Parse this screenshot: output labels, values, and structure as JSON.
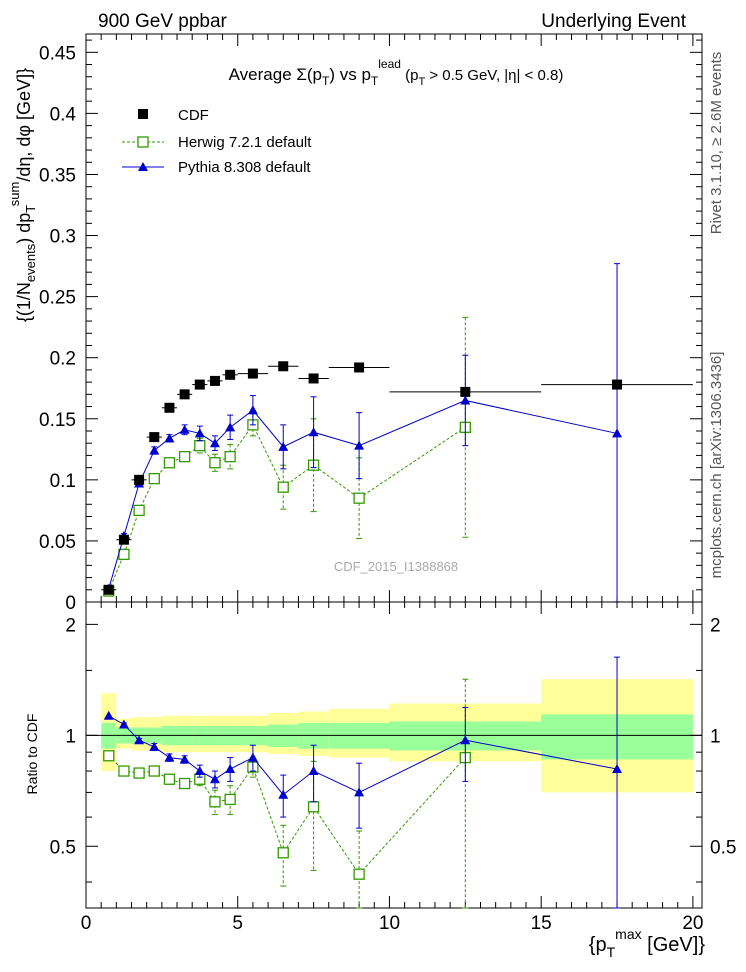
{
  "header": {
    "left": "900 GeV ppbar",
    "right": "Underlying Event"
  },
  "side_labels": {
    "rivet": "Rivet 3.1.10, ≥ 2.6M events",
    "mcplots": "mcplots.cern.ch [arXiv:1306.3436]"
  },
  "chart_data": [
    {
      "type": "scatter",
      "title": "Average Σ(p_T) vs p_T^lead (p_T > 0.5 GeV, |η| < 0.8)",
      "ylabel": "{(1/N_events) dp_T^sum/dη, dφ [GeV]}",
      "xlim": [
        0,
        20.3
      ],
      "ylim": [
        0,
        0.465
      ],
      "y_ticks": [
        "0",
        "0.05",
        "0.1",
        "0.15",
        "0.2",
        "0.25",
        "0.3",
        "0.35",
        "0.4",
        "0.45"
      ],
      "watermark": "CDF_2015_I1388868",
      "legend_position": "top-left",
      "series": [
        {
          "name": "CDF",
          "color": "#000000",
          "marker": "filled-square",
          "x": [
            0.75,
            1.25,
            1.75,
            2.25,
            2.75,
            3.25,
            3.75,
            4.25,
            4.75,
            5.5,
            6.5,
            7.5,
            9.0,
            12.5,
            17.5
          ],
          "y": [
            0.01,
            0.051,
            0.1,
            0.135,
            0.159,
            0.17,
            0.178,
            0.181,
            0.186,
            0.187,
            0.193,
            0.183,
            0.192,
            0.172,
            0.178
          ],
          "xerr": [
            0.25,
            0.25,
            0.25,
            0.25,
            0.25,
            0.25,
            0.25,
            0.25,
            0.25,
            0.5,
            0.5,
            0.5,
            1.0,
            2.5,
            2.5
          ]
        },
        {
          "name": "Herwig 7.2.1 default",
          "color": "#339900",
          "marker": "open-square",
          "x": [
            0.75,
            1.25,
            1.75,
            2.25,
            2.75,
            3.25,
            3.75,
            4.25,
            4.75,
            5.5,
            6.5,
            7.5,
            9.0,
            12.5
          ],
          "y": [
            0.009,
            0.039,
            0.075,
            0.101,
            0.114,
            0.119,
            0.128,
            0.114,
            0.119,
            0.145,
            0.094,
            0.112,
            0.085,
            0.143
          ],
          "yerr": [
            0.0,
            0.002,
            0.002,
            0.003,
            0.003,
            0.004,
            0.006,
            0.007,
            0.01,
            0.009,
            0.018,
            0.038,
            0.033,
            0.09
          ]
        },
        {
          "name": "Pythia 8.308 default",
          "color": "#0000cc",
          "marker": "filled-triangle",
          "x": [
            0.75,
            1.25,
            1.75,
            2.25,
            2.75,
            3.25,
            3.75,
            4.25,
            4.75,
            5.5,
            6.5,
            7.5,
            9.0,
            12.5,
            17.5
          ],
          "y": [
            0.011,
            0.054,
            0.097,
            0.124,
            0.134,
            0.141,
            0.138,
            0.13,
            0.143,
            0.157,
            0.127,
            0.139,
            0.128,
            0.165,
            0.138
          ],
          "yerr": [
            0.0,
            0.002,
            0.002,
            0.003,
            0.003,
            0.004,
            0.006,
            0.006,
            0.01,
            0.012,
            0.018,
            0.029,
            0.027,
            0.037,
            0.139
          ]
        }
      ]
    },
    {
      "type": "scatter",
      "ylabel": "Ratio to CDF",
      "xlabel": "{p_T^max [GeV]}",
      "xlim": [
        0,
        20.3
      ],
      "ylim": [
        0.34,
        2.3
      ],
      "log_y": true,
      "x_ticks": [
        "0",
        "5",
        "10",
        "15",
        "20"
      ],
      "y_ticks": [
        "0.5",
        "1",
        "2"
      ],
      "bands": {
        "x_edges": [
          0.5,
          1.0,
          1.5,
          2.0,
          2.5,
          3.0,
          3.5,
          4.0,
          4.5,
          5.0,
          6.0,
          7.0,
          8.0,
          10.0,
          15.0,
          20.0
        ],
        "stat_lo": [
          0.92,
          0.95,
          0.95,
          0.95,
          0.94,
          0.94,
          0.94,
          0.94,
          0.94,
          0.94,
          0.93,
          0.92,
          0.92,
          0.91,
          0.86
        ],
        "stat_hi": [
          1.08,
          1.05,
          1.05,
          1.05,
          1.06,
          1.06,
          1.06,
          1.06,
          1.06,
          1.06,
          1.07,
          1.08,
          1.08,
          1.09,
          1.14
        ],
        "tot_lo": [
          0.8,
          0.92,
          0.91,
          0.91,
          0.9,
          0.9,
          0.9,
          0.9,
          0.9,
          0.9,
          0.89,
          0.88,
          0.87,
          0.85,
          0.7
        ],
        "tot_hi": [
          1.3,
          1.11,
          1.12,
          1.12,
          1.13,
          1.13,
          1.13,
          1.13,
          1.13,
          1.13,
          1.15,
          1.16,
          1.18,
          1.22,
          1.42
        ],
        "stat_color": "#99ff99",
        "total_color": "#ffff99"
      },
      "series": [
        {
          "name": "Herwig 7.2.1 default",
          "color": "#339900",
          "x": [
            0.75,
            1.25,
            1.75,
            2.25,
            2.75,
            3.25,
            3.75,
            4.25,
            4.75,
            5.5,
            6.5,
            7.5,
            9.0,
            12.5
          ],
          "y": [
            0.88,
            0.8,
            0.79,
            0.8,
            0.76,
            0.74,
            0.76,
            0.66,
            0.67,
            0.82,
            0.48,
            0.64,
            0.42,
            0.87
          ],
          "yerr": [
            0.0,
            0.01,
            0.01,
            0.02,
            0.02,
            0.02,
            0.03,
            0.05,
            0.06,
            0.05,
            0.09,
            0.21,
            0.13,
            0.55
          ]
        },
        {
          "name": "Pythia 8.308 default",
          "color": "#0000cc",
          "x": [
            0.75,
            1.25,
            1.75,
            2.25,
            2.75,
            3.25,
            3.75,
            4.25,
            4.75,
            5.5,
            6.5,
            7.5,
            9.0,
            12.5,
            17.5
          ],
          "y": [
            1.13,
            1.07,
            0.97,
            0.93,
            0.87,
            0.86,
            0.8,
            0.76,
            0.81,
            0.87,
            0.69,
            0.8,
            0.7,
            0.97,
            0.81
          ],
          "yerr": [
            0.0,
            0.01,
            0.01,
            0.02,
            0.02,
            0.02,
            0.03,
            0.04,
            0.06,
            0.07,
            0.09,
            0.14,
            0.14,
            0.22,
            0.82
          ]
        }
      ]
    }
  ]
}
